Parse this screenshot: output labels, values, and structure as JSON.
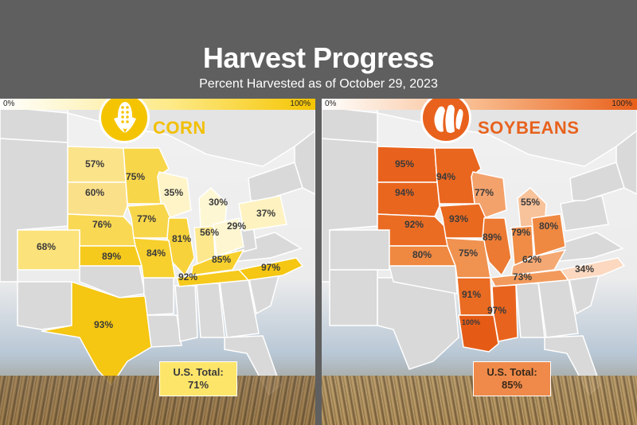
{
  "title": "Harvest Progress",
  "subtitle": "Percent Harvested as of October 29, 2023",
  "scale": {
    "min_label": "0%",
    "max_label": "100%"
  },
  "panels": {
    "corn": {
      "name": "CORN",
      "icon": "corn-icon",
      "color_low": "#ffffff",
      "color_high": "#f5c400",
      "total_label": "U.S. Total:",
      "total_value": "71%",
      "states": {
        "north_dakota": "57%",
        "minnesota": "75%",
        "south_dakota": "60%",
        "wisconsin": "35%",
        "michigan": "30%",
        "nebraska": "76%",
        "iowa": "77%",
        "illinois": "81%",
        "indiana": "56%",
        "ohio": "29%",
        "pennsylvania": "37%",
        "colorado": "68%",
        "kansas": "89%",
        "missouri": "84%",
        "kentucky": "85%",
        "tennessee": "92%",
        "north_carolina": "97%",
        "texas": "93%"
      }
    },
    "soybeans": {
      "name": "SOYBEANS",
      "icon": "soybean-icon",
      "color_low": "#ffffff",
      "color_high": "#e8621d",
      "total_label": "U.S. Total:",
      "total_value": "85%",
      "states": {
        "north_dakota": "95%",
        "minnesota": "94%",
        "south_dakota": "94%",
        "wisconsin": "77%",
        "michigan": "55%",
        "nebraska": "92%",
        "iowa": "93%",
        "illinois": "89%",
        "indiana": "79%",
        "ohio": "80%",
        "kansas": "80%",
        "missouri": "75%",
        "kentucky": "62%",
        "tennessee": "73%",
        "north_carolina": "34%",
        "arkansas": "91%",
        "mississippi": "97%",
        "louisiana": "100%"
      }
    }
  }
}
